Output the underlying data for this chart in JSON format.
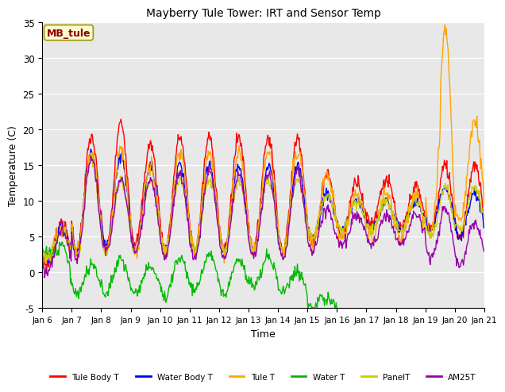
{
  "title": "Mayberry Tule Tower: IRT and Sensor Temp",
  "xlabel": "Time",
  "ylabel": "Temperature (C)",
  "ylim": [
    -5,
    35
  ],
  "annotation": "MB_tule",
  "legend": [
    {
      "label": "Tule Body T",
      "color": "#FF0000"
    },
    {
      "label": "Water Body T",
      "color": "#0000FF"
    },
    {
      "label": "Tule T",
      "color": "#FFA500"
    },
    {
      "label": "Water T",
      "color": "#00BB00"
    },
    {
      "label": "PanelT",
      "color": "#CCCC00"
    },
    {
      "label": "AM25T",
      "color": "#9900AA"
    }
  ],
  "series_colors": {
    "tule_body": "#FF0000",
    "water_body": "#0000FF",
    "tule_t": "#FFA500",
    "water_t": "#00BB00",
    "panel_t": "#CCCC00",
    "am25t": "#9900AA"
  },
  "xtick_labels": [
    "Jan 6",
    "Jan 7",
    "Jan 8",
    "Jan 9",
    "Jan 10",
    "Jan 11",
    "Jan 12",
    "Jan 13",
    "Jan 14",
    "Jan 15",
    "Jan 16",
    "Jan 17",
    "Jan 18",
    "Jan 19",
    "Jan 20",
    "Jan 21"
  ],
  "ytick_labels": [
    "-5",
    "0",
    "5",
    "10",
    "15",
    "20",
    "25",
    "30",
    "35"
  ],
  "ytick_vals": [
    -5,
    0,
    5,
    10,
    15,
    20,
    25,
    30,
    35
  ],
  "plot_bg_color": "#E8E8E8"
}
